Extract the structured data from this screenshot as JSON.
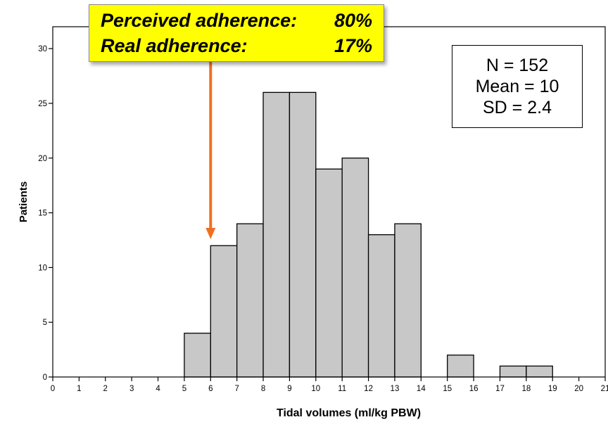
{
  "chart_data": {
    "type": "bar",
    "subtype": "histogram",
    "bins": [
      {
        "start": 5,
        "end": 6,
        "value": 4
      },
      {
        "start": 6,
        "end": 7,
        "value": 12
      },
      {
        "start": 7,
        "end": 8,
        "value": 14
      },
      {
        "start": 8,
        "end": 9,
        "value": 26
      },
      {
        "start": 9,
        "end": 10,
        "value": 26
      },
      {
        "start": 10,
        "end": 11,
        "value": 19
      },
      {
        "start": 11,
        "end": 12,
        "value": 20
      },
      {
        "start": 12,
        "end": 13,
        "value": 13
      },
      {
        "start": 13,
        "end": 14,
        "value": 14
      },
      {
        "start": 15,
        "end": 16,
        "value": 2
      },
      {
        "start": 17,
        "end": 18,
        "value": 1
      },
      {
        "start": 18,
        "end": 19,
        "value": 1
      }
    ],
    "xlabel": "Tidal volumes (ml/kg PBW)",
    "ylabel": "Patients",
    "xlim": [
      0,
      21
    ],
    "ylim": [
      0,
      32
    ],
    "xticks": [
      "0",
      "1",
      "2",
      "3",
      "4",
      "5",
      "6",
      "7",
      "8",
      "9",
      "10",
      "11",
      "12",
      "13",
      "14",
      "15",
      "16",
      "17",
      "18",
      "19",
      "20",
      "21"
    ],
    "yticks": [
      "0",
      "5",
      "10",
      "15",
      "20",
      "25",
      "30"
    ],
    "bar_color": "#c8c8c8",
    "annotation_arrow": {
      "x": 6,
      "color": "#f07020"
    },
    "callout": {
      "lines": [
        {
          "label": "Perceived adherence:",
          "value": "80%"
        },
        {
          "label": "Real adherence:",
          "value": "17%"
        }
      ],
      "background": "#ffff00"
    },
    "stats_box": [
      "N = 152",
      "Mean = 10",
      "SD = 2.4"
    ],
    "grid": false
  }
}
